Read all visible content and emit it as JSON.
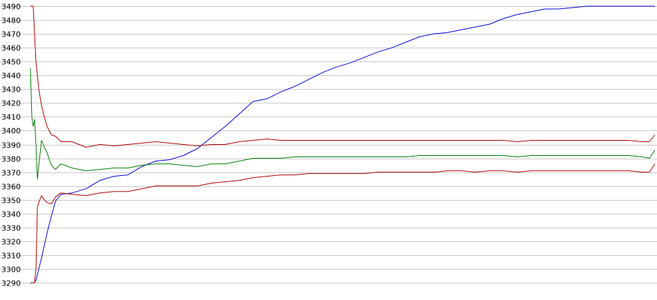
{
  "chart_data": {
    "type": "line",
    "title": "",
    "xlabel": "",
    "ylabel": "",
    "ylim": [
      3290,
      3490
    ],
    "yticks": [
      3290,
      3300,
      3310,
      3320,
      3330,
      3340,
      3350,
      3360,
      3370,
      3380,
      3390,
      3400,
      3410,
      3420,
      3430,
      3440,
      3450,
      3460,
      3470,
      3480,
      3490
    ],
    "grid": true,
    "legend": "none",
    "x": [
      0,
      1,
      2,
      3,
      4,
      5,
      6,
      8,
      10,
      12,
      15,
      18,
      22,
      30,
      40,
      50,
      60,
      70,
      80,
      90,
      100,
      110,
      120,
      130,
      140,
      150,
      160,
      170,
      180,
      190,
      200,
      210,
      220,
      230,
      240,
      250,
      260,
      270,
      280,
      290,
      300,
      310,
      320,
      330,
      340,
      350,
      360,
      370,
      380,
      390,
      400,
      410,
      420,
      430,
      440,
      445,
      449
    ],
    "series": [
      {
        "color": "#0000cc",
        "values": [
          3290,
          3290,
          3290,
          3290,
          3292,
          3296,
          3300,
          3308,
          3317,
          3326,
          3338,
          3349,
          3354,
          3355,
          3358,
          3364,
          3367,
          3368,
          3374,
          3378,
          3379,
          3382,
          3387,
          3395,
          3403,
          3412,
          3421,
          3423,
          3428,
          3432,
          3437,
          3442,
          3446,
          3449,
          3453,
          3457,
          3460,
          3464,
          3468,
          3470,
          3471,
          3473,
          3475,
          3477,
          3481,
          3484,
          3486,
          3488,
          3488,
          3489,
          3490,
          3490,
          3490,
          3490,
          3490,
          3490,
          3490
        ]
      },
      {
        "color": "#aa0000",
        "values": [
          3490,
          3490,
          3490,
          3470,
          3450,
          3440,
          3430,
          3418,
          3410,
          3403,
          3397,
          3396,
          3392,
          3392,
          3388,
          3390,
          3389,
          3390,
          3391,
          3392,
          3391,
          3390,
          3389,
          3390,
          3390,
          3392,
          3393,
          3394,
          3393,
          3393,
          3393,
          3393,
          3393,
          3393,
          3393,
          3393,
          3393,
          3393,
          3393,
          3393,
          3393,
          3393,
          3393,
          3393,
          3393,
          3392,
          3393,
          3393,
          3393,
          3393,
          3393,
          3393,
          3393,
          3393,
          3392,
          3392,
          3397
        ]
      },
      {
        "color": "#007700",
        "values": [
          3445,
          3410,
          3403,
          3408,
          3390,
          3365,
          3375,
          3393,
          3388,
          3384,
          3375,
          3372,
          3376,
          3373,
          3371,
          3372,
          3373,
          3373,
          3375,
          3376,
          3376,
          3375,
          3374,
          3376,
          3376,
          3378,
          3380,
          3380,
          3380,
          3381,
          3381,
          3381,
          3381,
          3381,
          3381,
          3381,
          3381,
          3381,
          3382,
          3382,
          3382,
          3382,
          3382,
          3382,
          3382,
          3381,
          3382,
          3382,
          3382,
          3382,
          3382,
          3382,
          3382,
          3382,
          3381,
          3380,
          3386
        ]
      },
      {
        "color": "#aa0000",
        "values": [
          3290,
          3290,
          3290,
          3290,
          3300,
          3345,
          3348,
          3353,
          3350,
          3348,
          3347,
          3352,
          3355,
          3354,
          3353,
          3355,
          3356,
          3356,
          3358,
          3360,
          3360,
          3360,
          3360,
          3362,
          3363,
          3364,
          3366,
          3367,
          3368,
          3368,
          3369,
          3369,
          3369,
          3369,
          3369,
          3370,
          3370,
          3370,
          3370,
          3370,
          3371,
          3371,
          3370,
          3371,
          3371,
          3370,
          3371,
          3371,
          3371,
          3371,
          3371,
          3371,
          3371,
          3371,
          3370,
          3370,
          3376
        ]
      }
    ]
  }
}
